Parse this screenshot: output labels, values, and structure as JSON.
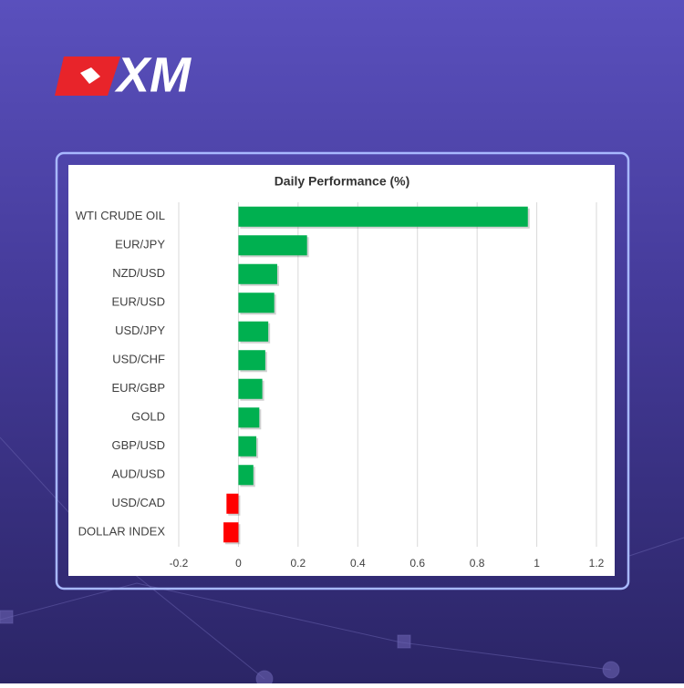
{
  "brand": "XM",
  "chart_data": {
    "type": "bar",
    "orientation": "horizontal",
    "title": "Daily Performance (%)",
    "categories": [
      "WTI CRUDE OIL",
      "EUR/JPY",
      "NZD/USD",
      "EUR/USD",
      "USD/JPY",
      "USD/CHF",
      "EUR/GBP",
      "GOLD",
      "GBP/USD",
      "AUD/USD",
      "USD/CAD",
      "DOLLAR INDEX"
    ],
    "values": [
      0.97,
      0.23,
      0.13,
      0.12,
      0.1,
      0.09,
      0.08,
      0.07,
      0.06,
      0.05,
      -0.04,
      -0.05
    ],
    "color": "#00b050",
    "negative_color": "#ff0000",
    "xlim": [
      -0.2,
      1.2
    ],
    "xticks": [
      -0.2,
      0,
      0.2,
      0.4,
      0.6,
      0.8,
      1,
      1.2
    ],
    "grid": true
  }
}
